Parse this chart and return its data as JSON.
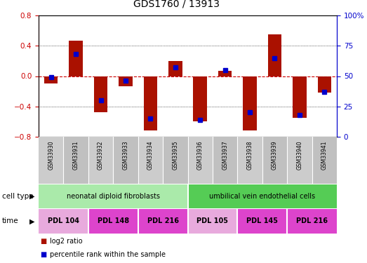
{
  "title": "GDS1760 / 13913",
  "samples": [
    "GSM33930",
    "GSM33931",
    "GSM33932",
    "GSM33933",
    "GSM33934",
    "GSM33935",
    "GSM33936",
    "GSM33937",
    "GSM33938",
    "GSM33939",
    "GSM33940",
    "GSM33941"
  ],
  "log2_ratio": [
    -0.1,
    0.47,
    -0.48,
    -0.13,
    -0.72,
    0.2,
    -0.6,
    0.07,
    -0.72,
    0.55,
    -0.55,
    -0.22
  ],
  "percentile_rank": [
    49,
    68,
    30,
    46,
    15,
    57,
    14,
    55,
    20,
    65,
    18,
    37
  ],
  "ylim": [
    -0.8,
    0.8
  ],
  "yticks_left": [
    -0.8,
    -0.4,
    0.0,
    0.4,
    0.8
  ],
  "right_yticks": [
    0,
    25,
    50,
    75,
    100
  ],
  "bar_color": "#aa1100",
  "percentile_color": "#0000cc",
  "zero_line_color": "#cc0000",
  "grid_color": "#000000",
  "bar_width": 0.55,
  "right_axis_color": "#0000cc",
  "left_axis_color": "#cc0000",
  "sample_box_color_even": "#cccccc",
  "sample_box_color_odd": "#c0c0c0",
  "cell_type_groups": [
    {
      "label": "neonatal diploid fibroblasts",
      "start": 0,
      "end": 6,
      "color": "#aaeaaa"
    },
    {
      "label": "umbilical vein endothelial cells",
      "start": 6,
      "end": 12,
      "color": "#55cc55"
    }
  ],
  "time_groups": [
    {
      "label": "PDL 104",
      "start": 0,
      "end": 2,
      "color": "#e8aadd"
    },
    {
      "label": "PDL 148",
      "start": 2,
      "end": 4,
      "color": "#dd44cc"
    },
    {
      "label": "PDL 216",
      "start": 4,
      "end": 6,
      "color": "#dd44cc"
    },
    {
      "label": "PDL 105",
      "start": 6,
      "end": 8,
      "color": "#e8aadd"
    },
    {
      "label": "PDL 145",
      "start": 8,
      "end": 10,
      "color": "#dd44cc"
    },
    {
      "label": "PDL 216",
      "start": 10,
      "end": 12,
      "color": "#dd44cc"
    }
  ],
  "legend_items": [
    {
      "label": "log2 ratio",
      "color": "#aa1100"
    },
    {
      "label": "percentile rank within the sample",
      "color": "#0000cc"
    }
  ],
  "cell_type_label": "cell type",
  "time_label": "time"
}
